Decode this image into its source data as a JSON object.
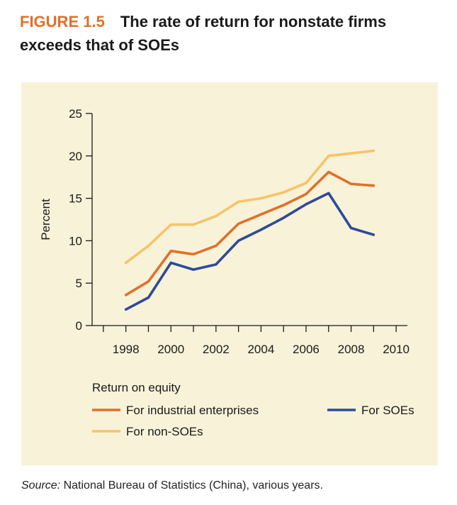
{
  "figure": {
    "number": "FIGURE 1.5",
    "title": "The rate of return for nonstate firms exceeds that of SOEs"
  },
  "source": {
    "label": "Source:",
    "text": "National Bureau of Statistics (China), various years."
  },
  "colors": {
    "accent": "#e0702a",
    "industrial": "#e0702a",
    "nonsoe": "#f5c46a",
    "soe": "#2e4a9a",
    "panel": "#f8f2d8"
  },
  "chart_data": {
    "type": "line",
    "xlabel": "",
    "ylabel": "Percent",
    "xlim": [
      1996.5,
      2010.5
    ],
    "ylim": [
      0,
      25
    ],
    "yticks": [
      0,
      5,
      10,
      15,
      20,
      25
    ],
    "xticks": [
      1998,
      2000,
      2002,
      2004,
      2006,
      2008,
      2010
    ],
    "legend_title": "Return on equity",
    "legend_placement": "bottom",
    "grid": false,
    "x": [
      1998,
      1999,
      2000,
      2001,
      2002,
      2003,
      2004,
      2005,
      2006,
      2007,
      2008,
      2009
    ],
    "series": [
      {
        "name": "For industrial enterprises",
        "color": "#e0702a",
        "values": [
          3.6,
          5.2,
          8.8,
          8.4,
          9.4,
          12.0,
          13.1,
          14.2,
          15.5,
          18.1,
          16.7,
          16.5
        ]
      },
      {
        "name": "For SOEs",
        "color": "#2e4a9a",
        "values": [
          1.9,
          3.3,
          7.4,
          6.6,
          7.2,
          10.0,
          11.3,
          12.7,
          14.3,
          15.6,
          11.5,
          10.7
        ]
      },
      {
        "name": "For non-SOEs",
        "color": "#f5c46a",
        "values": [
          7.4,
          9.4,
          11.9,
          11.9,
          12.9,
          14.6,
          15.0,
          15.7,
          16.8,
          20.0,
          20.3,
          20.6
        ]
      }
    ]
  }
}
